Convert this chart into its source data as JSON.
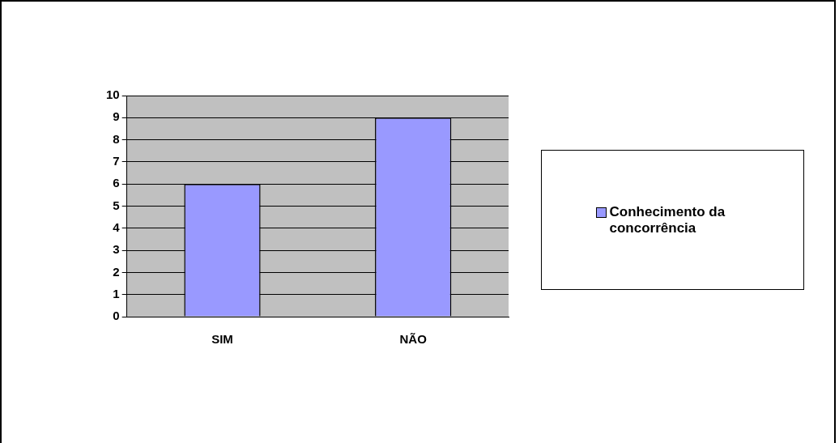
{
  "chart_data": {
    "type": "bar",
    "categories": [
      "SIM",
      "NÃO"
    ],
    "series": [
      {
        "name": "Conhecimento da concorrência",
        "color": "#9999ff",
        "values": [
          6,
          9
        ]
      }
    ],
    "ylim": [
      0,
      10
    ],
    "yticks": [
      0,
      1,
      2,
      3,
      4,
      5,
      6,
      7,
      8,
      9,
      10
    ],
    "grid": "y",
    "legend": "right"
  }
}
